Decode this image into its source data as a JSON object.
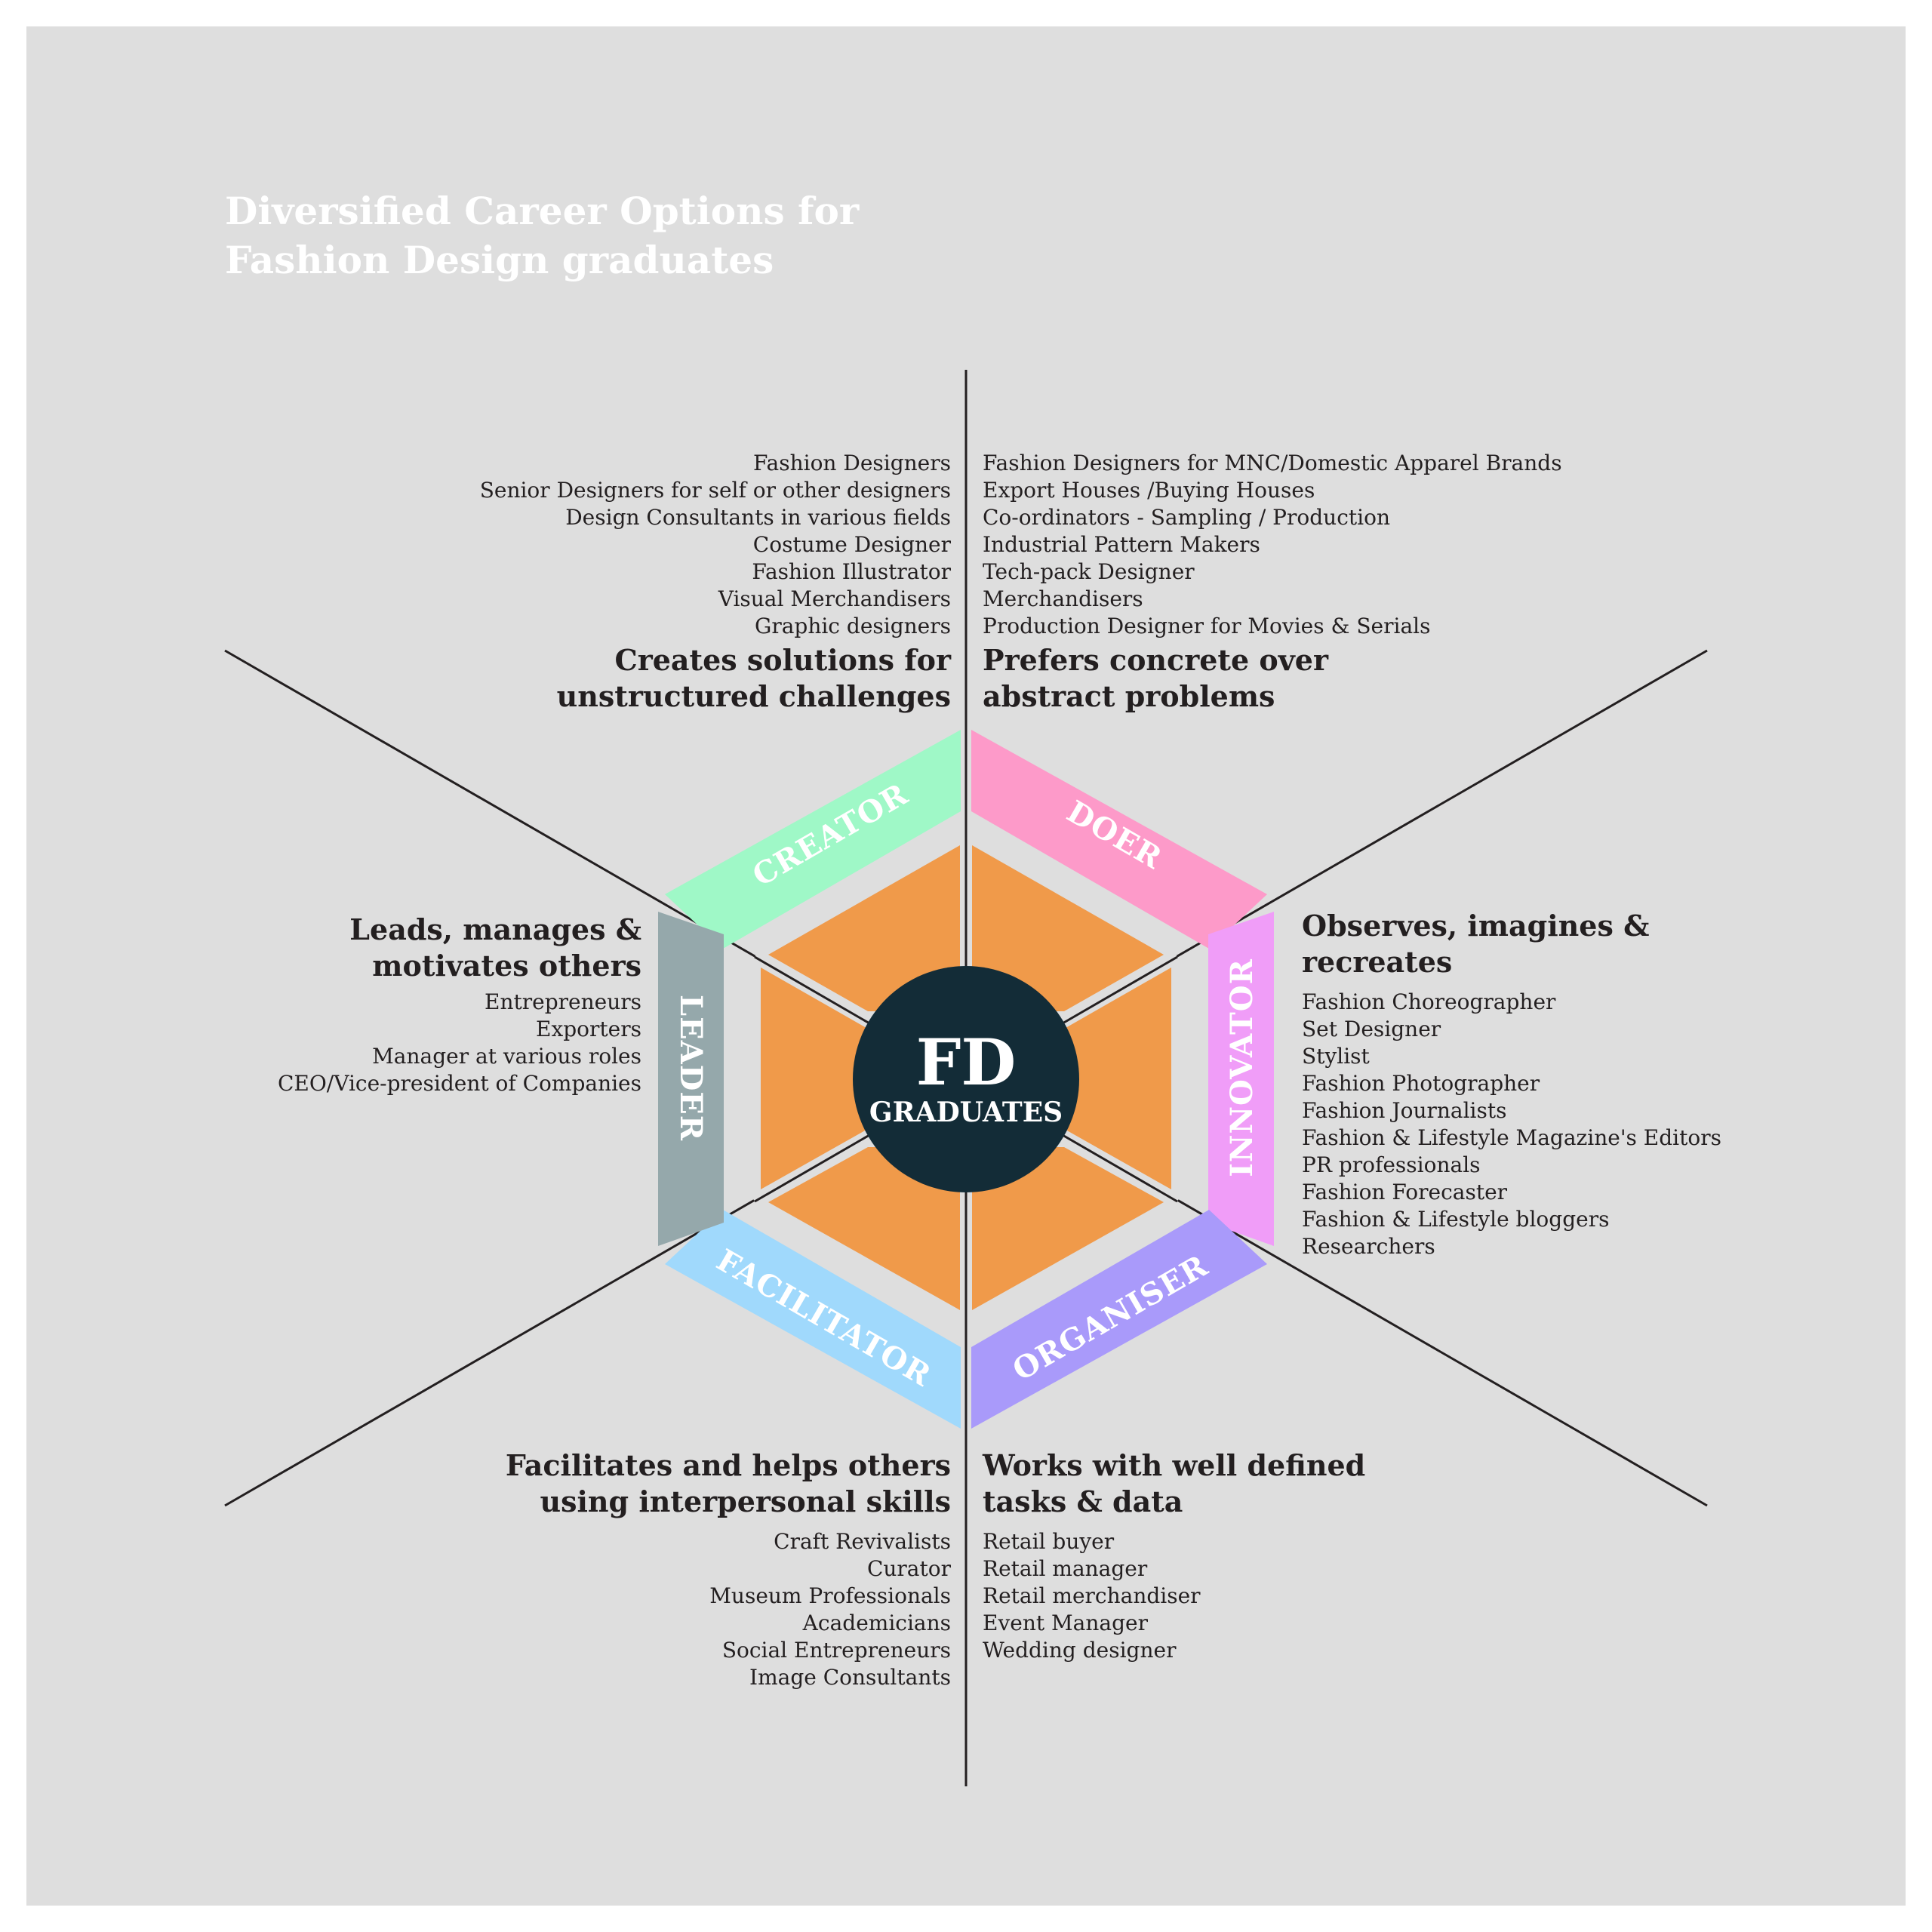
{
  "title": {
    "line1": "Diversified Career Options for",
    "line2": "Fashion Design graduates"
  },
  "center": {
    "big": "FD",
    "small": "GRADUATES"
  },
  "colors": {
    "background": "#dedede",
    "hexagon": "#f09a4a",
    "center_circle": "#132c37",
    "lines": "#231f20",
    "creator": "#9ff8c7",
    "doer": "#fd9ac9",
    "innovator": "#f09df8",
    "organiser": "#a99afa",
    "facilitator": "#a0d9fc",
    "leader": "#95a8ab"
  },
  "bands": {
    "creator": "CREATOR",
    "doer": "DOER",
    "innovator": "INNOVATOR",
    "organiser": "ORGANISER",
    "facilitator": "FACILITATOR",
    "leader": "LEADER"
  },
  "creator": {
    "heading": [
      "Creates solutions for",
      "unstructured challenges"
    ],
    "items": [
      "Fashion Designers",
      "Senior Designers for self or other designers",
      "Design Consultants in various fields",
      "Costume Designer",
      "Fashion Illustrator",
      "Visual Merchandisers",
      "Graphic designers"
    ]
  },
  "doer": {
    "heading": [
      "Prefers concrete over",
      "abstract problems"
    ],
    "items": [
      "Fashion Designers for MNC/Domestic Apparel Brands",
      "Export Houses /Buying Houses",
      "Co-ordinators - Sampling / Production",
      "Industrial Pattern Makers",
      "Tech-pack Designer",
      "Merchandisers",
      "Production Designer for Movies & Serials"
    ]
  },
  "innovator": {
    "heading": [
      "Observes, imagines &",
      "recreates"
    ],
    "items": [
      "Fashion Choreographer",
      "Set Designer",
      "Stylist",
      "Fashion Photographer",
      "Fashion Journalists",
      "Fashion & Lifestyle Magazine's Editors",
      "PR professionals",
      "Fashion Forecaster",
      "Fashion & Lifestyle bloggers",
      "Researchers"
    ]
  },
  "organiser": {
    "heading": [
      "Works with well defined",
      "tasks & data"
    ],
    "items": [
      "Retail buyer",
      "Retail manager",
      "Retail merchandiser",
      "Event Manager",
      "Wedding designer"
    ]
  },
  "facilitator": {
    "heading": [
      "Facilitates and helps others",
      "using interpersonal skills"
    ],
    "items": [
      "Craft Revivalists",
      "Curator",
      "Museum Professionals",
      "Academicians",
      "Social Entrepreneurs",
      "Image Consultants"
    ]
  },
  "leader": {
    "heading": [
      "Leads, manages &",
      "motivates others"
    ],
    "items": [
      "Entrepreneurs",
      "Exporters",
      "Manager at various roles",
      "CEO/Vice-president of Companies"
    ]
  }
}
